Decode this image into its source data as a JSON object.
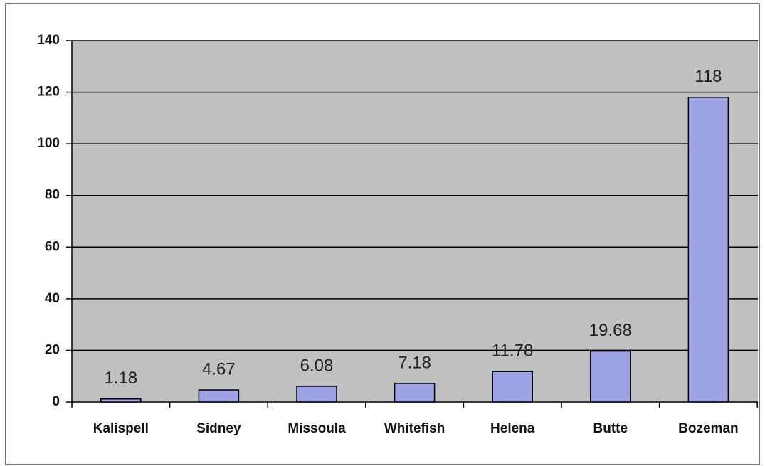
{
  "chart_data": {
    "type": "bar",
    "categories": [
      "Kalispell",
      "Sidney",
      "Missoula",
      "Whitefish",
      "Helena",
      "Butte",
      "Bozeman"
    ],
    "values": [
      1.18,
      4.67,
      6.08,
      7.18,
      11.78,
      19.68,
      118
    ],
    "color": "#9ea3e6",
    "ylim": [
      0,
      140
    ],
    "yticks": [
      0,
      20,
      40,
      60,
      80,
      100,
      120,
      140
    ],
    "grid": true
  }
}
